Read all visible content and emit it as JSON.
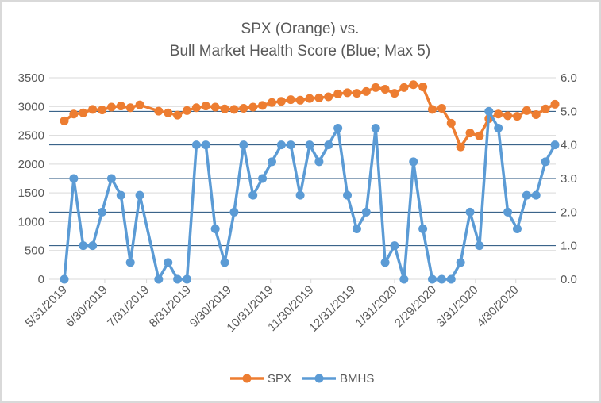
{
  "chart_data": {
    "type": "line",
    "title": [
      "SPX (Orange) vs.",
      "Bull Market Health Score (Blue; Max 5)"
    ],
    "xlabel": "",
    "ylabel_left": "",
    "ylabel_right": "",
    "x_ticks": [
      "5/31/2019",
      "6/30/2019",
      "7/31/2019",
      "8/31/2019",
      "9/30/2019",
      "10/31/2019",
      "11/30/2019",
      "12/31/2019",
      "1/31/2020",
      "2/29/2020",
      "3/31/2020",
      "4/30/2020"
    ],
    "y_left": {
      "min": 0,
      "max": 3500,
      "step": 500,
      "ticks": [
        "0",
        "500",
        "1000",
        "1500",
        "2000",
        "2500",
        "3000",
        "3500"
      ]
    },
    "y_right": {
      "min": 0,
      "max": 6,
      "step": 1,
      "ticks": [
        "0.0",
        "1.0",
        "2.0",
        "3.0",
        "4.0",
        "5.0",
        "6.0"
      ]
    },
    "grid": true,
    "legend": "bottom",
    "x": [
      "5/31/2019",
      "6/7/2019",
      "6/14/2019",
      "6/21/2019",
      "6/28/2019",
      "7/5/2019",
      "7/12/2019",
      "7/19/2019",
      "7/26/2019",
      "8/9/2019",
      "8/16/2019",
      "8/23/2019",
      "8/30/2019",
      "9/6/2019",
      "9/13/2019",
      "9/20/2019",
      "9/27/2019",
      "10/4/2019",
      "10/11/2019",
      "10/18/2019",
      "10/25/2019",
      "11/1/2019",
      "11/8/2019",
      "11/15/2019",
      "11/22/2019",
      "11/29/2019",
      "12/6/2019",
      "12/13/2019",
      "12/20/2019",
      "12/27/2019",
      "1/3/2020",
      "1/10/2020",
      "1/17/2020",
      "1/24/2020",
      "1/31/2020",
      "2/7/2020",
      "2/14/2020",
      "2/21/2020",
      "2/28/2020",
      "3/6/2020",
      "3/13/2020",
      "3/20/2020",
      "3/27/2020",
      "4/3/2020",
      "4/10/2020",
      "4/17/2020",
      "4/24/2020",
      "5/1/2020",
      "5/8/2020",
      "5/15/2020",
      "5/22/2020",
      "5/29/2020"
    ],
    "series": [
      {
        "name": "SPX",
        "axis": "left",
        "color": "#ED7D31",
        "values": [
          2750,
          2870,
          2890,
          2950,
          2940,
          2990,
          3010,
          2980,
          3030,
          2920,
          2890,
          2850,
          2930,
          2980,
          3010,
          2990,
          2960,
          2950,
          2970,
          2990,
          3020,
          3070,
          3090,
          3120,
          3110,
          3140,
          3150,
          3170,
          3220,
          3240,
          3230,
          3260,
          3330,
          3300,
          3230,
          3330,
          3380,
          3340,
          2950,
          2970,
          2710,
          2300,
          2540,
          2490,
          2790,
          2870,
          2840,
          2830,
          2930,
          2860,
          2960,
          3040
        ]
      },
      {
        "name": "BMHS",
        "axis": "right",
        "color": "#5B9BD5",
        "values": [
          0,
          3,
          1,
          1,
          2,
          3,
          2.5,
          0.5,
          2.5,
          0,
          0.5,
          0,
          0,
          4,
          4,
          1.5,
          0.5,
          2,
          4,
          2.5,
          3,
          3.5,
          4,
          4,
          2.5,
          4,
          3.5,
          4,
          4.5,
          2.5,
          1.5,
          2,
          4.5,
          0.5,
          1,
          0,
          3.5,
          1.5,
          0,
          0,
          0,
          0.5,
          2,
          1,
          5,
          4.5,
          2,
          1.5,
          2.5,
          2.5,
          3.5,
          4
        ]
      }
    ]
  }
}
